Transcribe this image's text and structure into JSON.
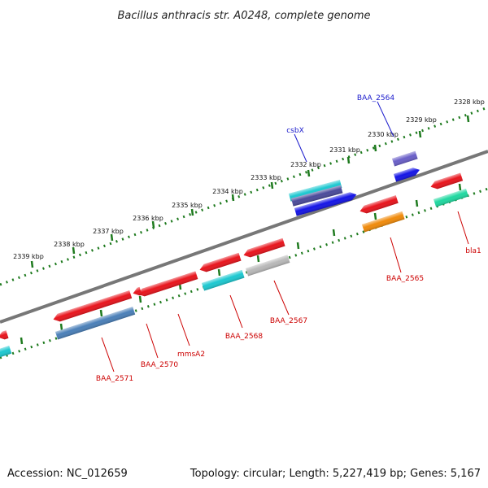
{
  "title": "Bacillus anthracis str. A0248, complete genome",
  "footer": {
    "accession": "Accession: NC_012659",
    "topology": "Topology: circular; Length: 5,227,419 bp; Genes: 5,167"
  },
  "ticks": [
    "2328 kbp",
    "2329 kbp",
    "2330 kbp",
    "2331 kbp",
    "2332 kbp",
    "2333 kbp",
    "2334 kbp",
    "2335 kbp",
    "2336 kbp",
    "2337 kbp",
    "2338 kbp",
    "2339 kbp"
  ],
  "labels": {
    "forward": [
      "BAA_2564",
      "csbX"
    ],
    "reverse": [
      "bla1",
      "BAA_2565",
      "BAA_2567",
      "BAA_2568",
      "mmsA2",
      "BAA_2570",
      "BAA_2571"
    ]
  },
  "colors": {
    "backbone": "#777777",
    "ticks": "#1e7a1e",
    "label_forward": "#1a1acc",
    "label_reverse": "#cc0000",
    "red": "#e8141c",
    "cyan": "#1cc8d0",
    "blue": "#1414e6",
    "purple": "#6a5fc8",
    "steelblue": "#4a7fb8",
    "orange": "#f08a0a",
    "gray": "#b8b8b8",
    "teal": "#20d8a0",
    "navy": "#4a4a9a"
  }
}
